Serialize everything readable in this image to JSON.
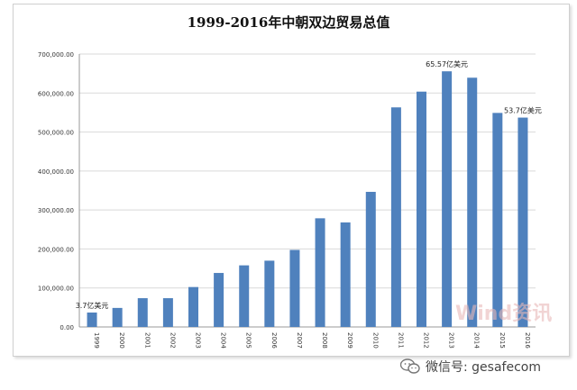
{
  "chart_data": {
    "type": "bar",
    "title": "1999-2016年中朝双边贸易总值",
    "categories": [
      "1999",
      "2000",
      "2001",
      "2002",
      "2003",
      "2004",
      "2005",
      "2006",
      "2007",
      "2008",
      "2009",
      "2010",
      "2011",
      "2012",
      "2013",
      "2014",
      "2015",
      "2016"
    ],
    "values": [
      37000,
      48800,
      73800,
      73800,
      102400,
      138500,
      158000,
      170000,
      197600,
      278700,
      268100,
      346500,
      563200,
      603600,
      655700,
      639300,
      549000,
      537000
    ],
    "yticks": [
      "0.00",
      "100,000.00",
      "200,000.00",
      "300,000.00",
      "400,000.00",
      "500,000.00",
      "600,000.00",
      "700,000.00"
    ],
    "ylim": [
      0,
      700000
    ],
    "grid": true,
    "bar_color": "#4f81bd",
    "annotations": [
      {
        "category": "1999",
        "text": "3.7亿美元"
      },
      {
        "category": "2013",
        "text": "65.57亿美元"
      },
      {
        "category": "2016",
        "text": "53.7亿美元"
      }
    ]
  },
  "watermark": "Wind资讯",
  "footer": {
    "wechat_label": "微信号: gesafecom",
    "icon": "wechat-icon"
  }
}
